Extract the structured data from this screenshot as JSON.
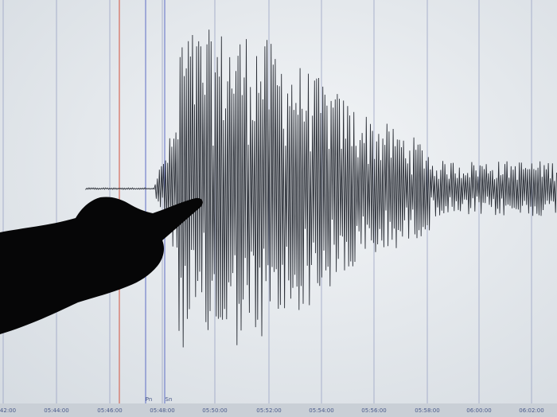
{
  "time_axis": {
    "labels": [
      "42:00",
      "05:44:00",
      "05:46:00",
      "05:48:00",
      "05:50:00",
      "05:52:00",
      "05:54:00",
      "05:56:00",
      "05:58:00",
      "06:00:00",
      "06:02:00"
    ]
  },
  "phase_markers": {
    "pn": "Pn",
    "sn": "Sn"
  }
}
